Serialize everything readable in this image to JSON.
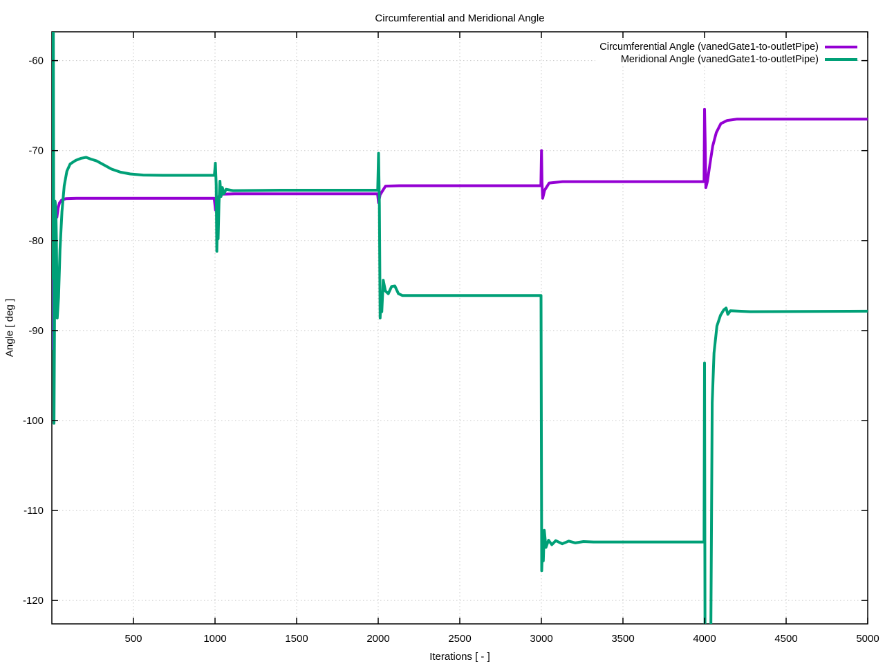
{
  "figure": {
    "title": "Circumferential and Meridional Angle",
    "xlabel": "Iterations [ - ]",
    "ylabel": "Angle [ deg ]"
  },
  "chart_data": {
    "type": "line",
    "title": "Circumferential and Meridional Angle",
    "xlabel": "Iterations [ - ]",
    "ylabel": "Angle [ deg ]",
    "xlim": [
      0,
      5000
    ],
    "ylim": [
      -122.6,
      -56.8
    ],
    "xticks": [
      500,
      1000,
      1500,
      2000,
      2500,
      3000,
      3500,
      4000,
      4500,
      5000
    ],
    "yticks": [
      -120,
      -110,
      -100,
      -90,
      -80,
      -70,
      -60
    ],
    "grid": true,
    "grid_style": "dotted",
    "grid_color": "#c8c8c8",
    "border_color": "#000000",
    "legend_position": "top-right-inside",
    "series": [
      {
        "name": "Circumferential Angle (vanedGate1-to-outletPipe)",
        "color": "#9400d3",
        "points": [
          [
            0,
            -68
          ],
          [
            2,
            -90.5
          ],
          [
            4,
            -92
          ],
          [
            6,
            -91
          ],
          [
            8,
            -83.5
          ],
          [
            10,
            -90.5
          ],
          [
            13,
            -83
          ],
          [
            16,
            -78
          ],
          [
            20,
            -75.7
          ],
          [
            25,
            -76.5
          ],
          [
            31,
            -77.4
          ],
          [
            38,
            -76.4
          ],
          [
            47,
            -75.8
          ],
          [
            60,
            -75.5
          ],
          [
            85,
            -75.35
          ],
          [
            150,
            -75.3
          ],
          [
            995,
            -75.3
          ],
          [
            1003,
            -76.6
          ],
          [
            1010,
            -76.0
          ],
          [
            1022,
            -75.1
          ],
          [
            1045,
            -74.85
          ],
          [
            1120,
            -74.8
          ],
          [
            1996,
            -74.8
          ],
          [
            2002,
            -75.8
          ],
          [
            2012,
            -74.9
          ],
          [
            2045,
            -73.95
          ],
          [
            2130,
            -73.9
          ],
          [
            2997,
            -73.9
          ],
          [
            3001,
            -70.0
          ],
          [
            3004,
            -73.5
          ],
          [
            3008,
            -75.3
          ],
          [
            3020,
            -74.4
          ],
          [
            3048,
            -73.6
          ],
          [
            3130,
            -73.45
          ],
          [
            3997,
            -73.45
          ],
          [
            4000,
            -65.4
          ],
          [
            4004,
            -69.0
          ],
          [
            4008,
            -74.1
          ],
          [
            4018,
            -73.4
          ],
          [
            4032,
            -71.6
          ],
          [
            4050,
            -69.5
          ],
          [
            4072,
            -68.0
          ],
          [
            4100,
            -67.0
          ],
          [
            4140,
            -66.65
          ],
          [
            4200,
            -66.5
          ],
          [
            5000,
            -66.5
          ]
        ]
      },
      {
        "name": "Meridional Angle (vanedGate1-to-outletPipe)",
        "color": "#00a077",
        "points": [
          [
            0,
            -55
          ],
          [
            3,
            -84.2
          ],
          [
            6,
            -55
          ],
          [
            9,
            -55
          ],
          [
            11,
            -75
          ],
          [
            13,
            -100.3
          ],
          [
            16,
            -90
          ],
          [
            19,
            -75.6
          ],
          [
            24,
            -76.3
          ],
          [
            28,
            -80
          ],
          [
            33,
            -88.6
          ],
          [
            41,
            -86.3
          ],
          [
            50,
            -81
          ],
          [
            62,
            -76.8
          ],
          [
            76,
            -73.9
          ],
          [
            92,
            -72.3
          ],
          [
            112,
            -71.5
          ],
          [
            145,
            -71.1
          ],
          [
            180,
            -70.85
          ],
          [
            210,
            -70.75
          ],
          [
            240,
            -70.95
          ],
          [
            275,
            -71.15
          ],
          [
            315,
            -71.55
          ],
          [
            365,
            -72.05
          ],
          [
            420,
            -72.4
          ],
          [
            480,
            -72.6
          ],
          [
            560,
            -72.72
          ],
          [
            680,
            -72.75
          ],
          [
            996,
            -72.75
          ],
          [
            1002,
            -71.4
          ],
          [
            1007,
            -73.8
          ],
          [
            1011,
            -81.2
          ],
          [
            1015,
            -77.6
          ],
          [
            1019,
            -79.8
          ],
          [
            1024,
            -75.9
          ],
          [
            1030,
            -73.4
          ],
          [
            1037,
            -75.1
          ],
          [
            1045,
            -74.1
          ],
          [
            1054,
            -74.8
          ],
          [
            1068,
            -74.3
          ],
          [
            1110,
            -74.45
          ],
          [
            1400,
            -74.4
          ],
          [
            1997,
            -74.4
          ],
          [
            2002,
            -70.3
          ],
          [
            2007,
            -76
          ],
          [
            2012,
            -88.6
          ],
          [
            2017,
            -86.3
          ],
          [
            2022,
            -87.9
          ],
          [
            2031,
            -84.4
          ],
          [
            2044,
            -85.6
          ],
          [
            2062,
            -85.9
          ],
          [
            2082,
            -85.1
          ],
          [
            2102,
            -85.05
          ],
          [
            2124,
            -85.9
          ],
          [
            2148,
            -86.1
          ],
          [
            2400,
            -86.1
          ],
          [
            2998,
            -86.1
          ],
          [
            3002,
            -116.7
          ],
          [
            3007,
            -113.9
          ],
          [
            3012,
            -115.6
          ],
          [
            3018,
            -112.2
          ],
          [
            3028,
            -114.1
          ],
          [
            3044,
            -113.3
          ],
          [
            3064,
            -113.8
          ],
          [
            3088,
            -113.35
          ],
          [
            3128,
            -113.7
          ],
          [
            3168,
            -113.4
          ],
          [
            3208,
            -113.6
          ],
          [
            3258,
            -113.45
          ],
          [
            3320,
            -113.5
          ],
          [
            3997,
            -113.5
          ],
          [
            4000,
            -93.6
          ],
          [
            4003,
            -125
          ],
          [
            4038,
            -125
          ],
          [
            4047,
            -98
          ],
          [
            4058,
            -92.5
          ],
          [
            4076,
            -89.5
          ],
          [
            4098,
            -88.3
          ],
          [
            4118,
            -87.7
          ],
          [
            4132,
            -87.5
          ],
          [
            4143,
            -88.2
          ],
          [
            4158,
            -87.8
          ],
          [
            4280,
            -87.9
          ],
          [
            5000,
            -87.85
          ]
        ]
      }
    ]
  }
}
